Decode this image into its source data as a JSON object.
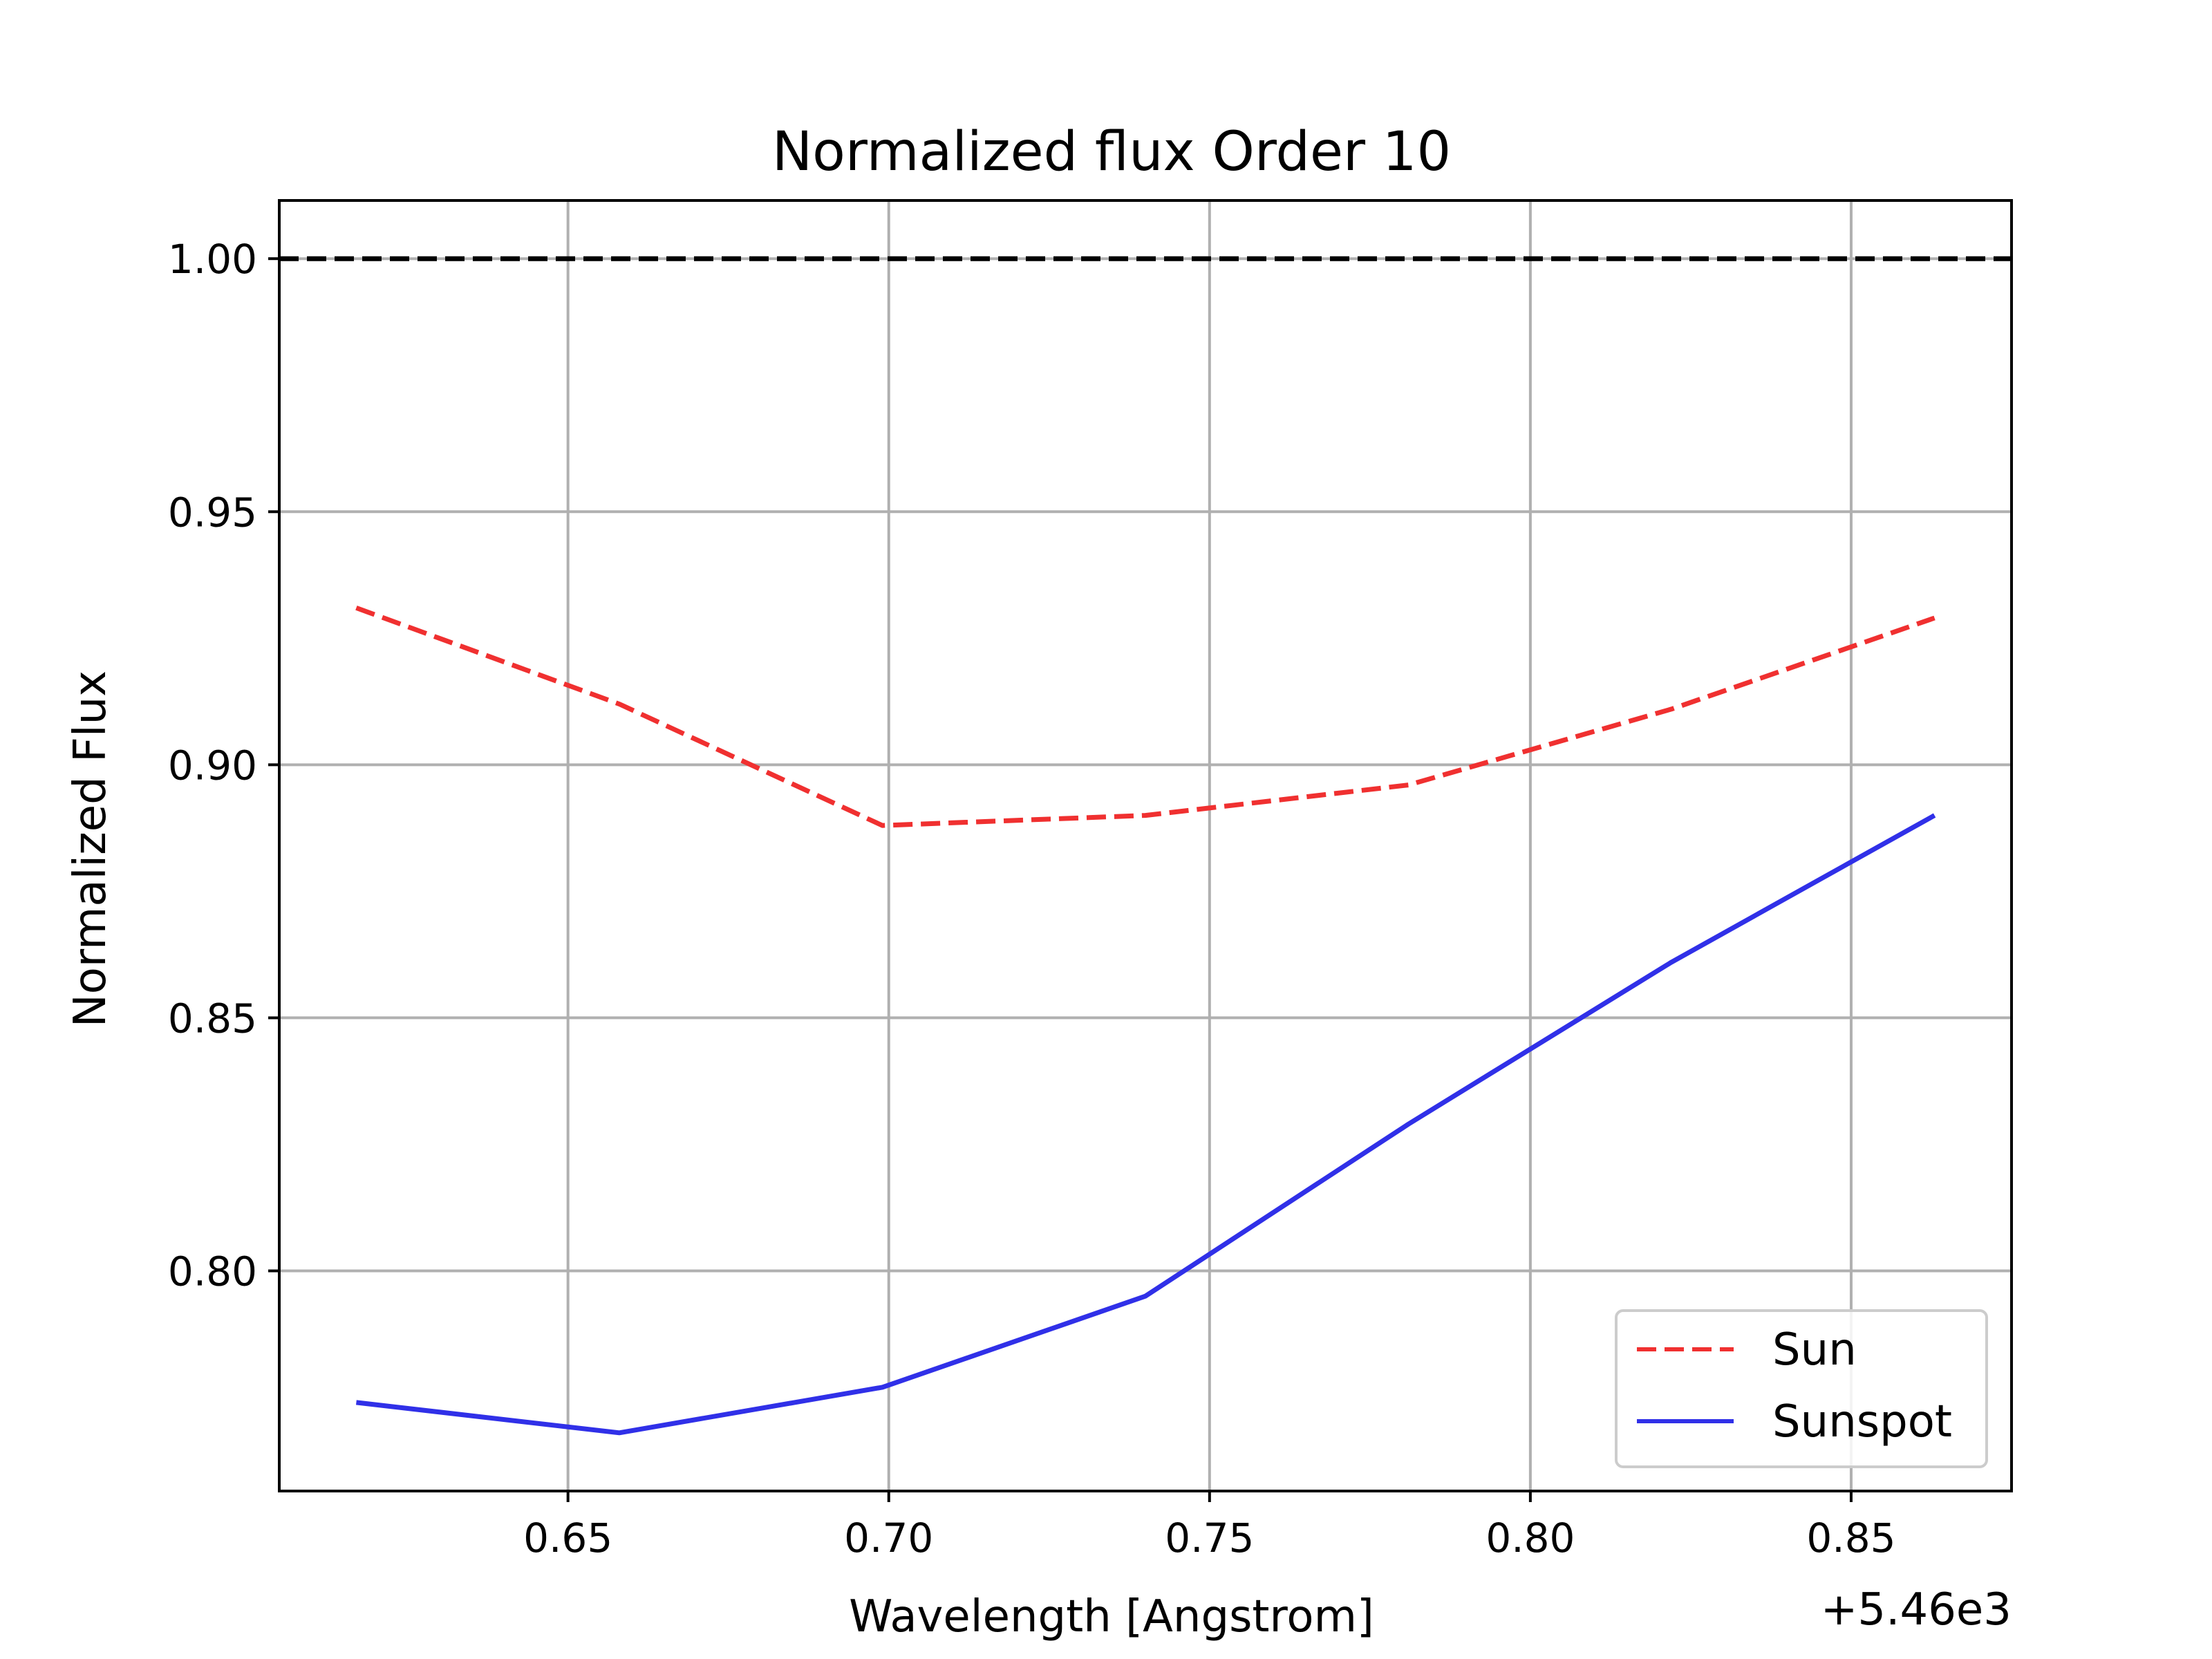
{
  "chart_data": {
    "type": "line",
    "title": "Normalized flux Order 10",
    "xlabel": "Wavelength [Angstrom]",
    "ylabel": "Normalized Flux",
    "x_offset_label": "+5.46e3",
    "xlim": [
      0.605,
      0.875
    ],
    "ylim": [
      0.7565,
      1.0115
    ],
    "x_ticks": [
      0.65,
      0.7,
      0.75,
      0.8,
      0.85
    ],
    "x_tick_labels": [
      "0.65",
      "0.70",
      "0.75",
      "0.80",
      "0.85"
    ],
    "y_ticks": [
      0.8,
      0.85,
      0.9,
      0.95,
      1.0
    ],
    "y_tick_labels": [
      "0.80",
      "0.85",
      "0.90",
      "0.95",
      "1.00"
    ],
    "grid": true,
    "legend_position": "lower-right",
    "reference_line": {
      "y": 1.0,
      "color": "#000000",
      "style": "dashed"
    },
    "series": [
      {
        "name": "Sun",
        "color": "#f03030",
        "style": "dashed",
        "x": [
          0.617,
          0.658,
          0.699,
          0.74,
          0.781,
          0.822,
          0.863
        ],
        "y": [
          0.931,
          0.912,
          0.888,
          0.89,
          0.896,
          0.911,
          0.929
        ]
      },
      {
        "name": "Sunspot",
        "color": "#3030e8",
        "style": "solid",
        "x": [
          0.617,
          0.658,
          0.699,
          0.74,
          0.781,
          0.822,
          0.863
        ],
        "y": [
          0.774,
          0.768,
          0.777,
          0.795,
          0.829,
          0.861,
          0.89
        ]
      }
    ]
  }
}
